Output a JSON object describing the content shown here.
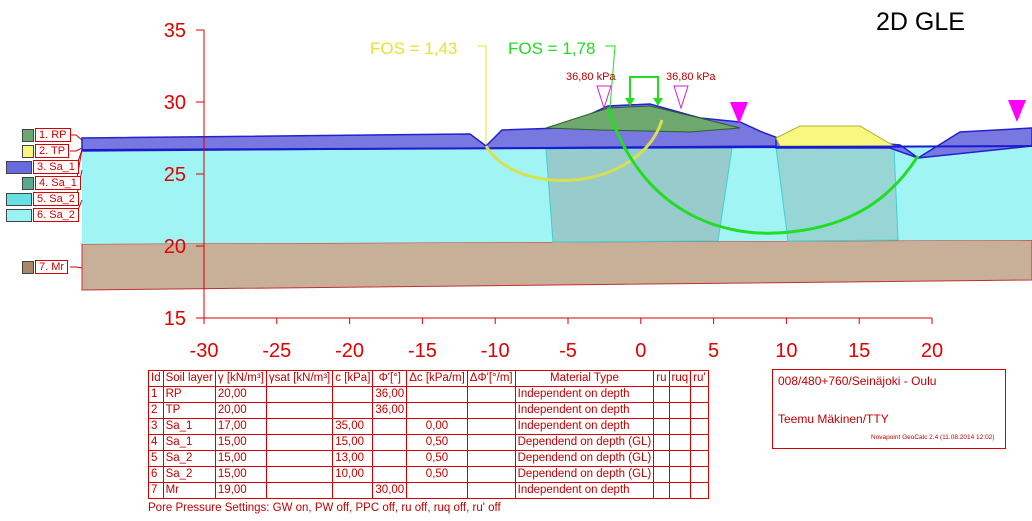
{
  "title": "2D GLE",
  "fos_labels": [
    {
      "text": "FOS = 1,43",
      "color": "#e8e030"
    },
    {
      "text": "FOS = 1,78",
      "color": "#22dd22"
    }
  ],
  "loads": [
    "36,80 kPa",
    "36,80 kPa"
  ],
  "y_axis": {
    "ticks": [
      "35",
      "30",
      "25",
      "20",
      "15"
    ],
    "range": [
      15,
      35
    ]
  },
  "x_axis": {
    "ticks": [
      "-30",
      "-25",
      "-20",
      "-15",
      "-10",
      "-5",
      "0",
      "5",
      "10",
      "15",
      "20"
    ],
    "range": [
      -30,
      20
    ]
  },
  "legend": [
    {
      "label": "1. RP",
      "color": "#6ea86e"
    },
    {
      "label": "2. TP",
      "color": "#f8f880"
    },
    {
      "label": "3. Sa_1",
      "color": "#6a6ae0"
    },
    {
      "label": "4. Sa_1",
      "color": "#5aa88e"
    },
    {
      "label": "5. Sa_2",
      "color": "#66e0e0"
    },
    {
      "label": "6. Sa_2",
      "color": "#9af2f2"
    },
    {
      "label": "7. Mr",
      "color": "#a88868"
    }
  ],
  "table": {
    "headers": [
      "Id",
      "Soil layer",
      "γ [kN/m³]",
      "γsat [kN/m³]",
      "c [kPa]",
      "Φ'[°]",
      "Δc [kPa/m]",
      "ΔΦ'[°/m]",
      "Material Type",
      "ru",
      "ruq",
      "ru'"
    ],
    "rows": [
      [
        "1",
        "RP",
        "20,00",
        "",
        "",
        "36,00",
        "",
        "",
        "Independent on depth",
        "",
        "",
        ""
      ],
      [
        "2",
        "TP",
        "20,00",
        "",
        "",
        "36,00",
        "",
        "",
        "Independent on depth",
        "",
        "",
        ""
      ],
      [
        "3",
        "Sa_1",
        "17,00",
        "",
        "35,00",
        "",
        "0,00",
        "",
        "Independent on depth",
        "",
        "",
        ""
      ],
      [
        "4",
        "Sa_1",
        "15,00",
        "",
        "15,00",
        "",
        "0,50",
        "",
        "Dependend on depth (GL)",
        "",
        "",
        ""
      ],
      [
        "5",
        "Sa_2",
        "15,00",
        "",
        "13,00",
        "",
        "0,50",
        "",
        "Dependend on depth (GL)",
        "",
        "",
        ""
      ],
      [
        "6",
        "Sa_2",
        "15,00",
        "",
        "10,00",
        "",
        "0,50",
        "",
        "Dependend on depth (GL)",
        "",
        "",
        ""
      ],
      [
        "7",
        "Mr",
        "19,00",
        "",
        "",
        "30,00",
        "",
        "",
        "Independent on depth",
        "",
        "",
        ""
      ]
    ]
  },
  "pore_pressure": "Pore Pressure Settings: GW on, PW off, PPC off, ru off, ruq off, ru' off",
  "info": {
    "project": "008/480+760/Seinäjoki - Oulu",
    "author": "Teemu Mäkinen/TTY",
    "software": "Novapoint GeoCalc 2.4  (11.08.2014 12:02)"
  }
}
